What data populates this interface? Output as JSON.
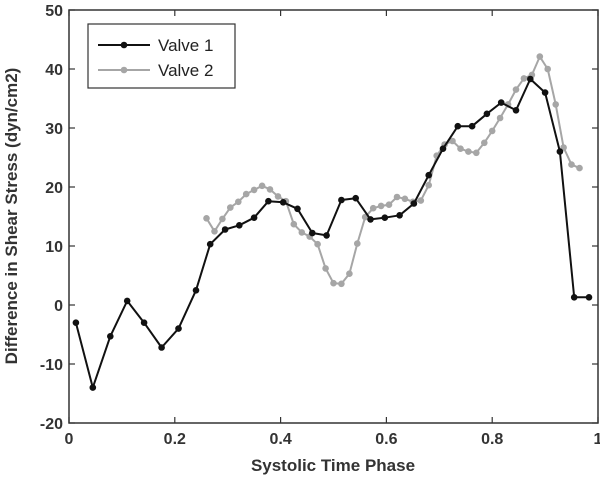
{
  "chart_data": {
    "type": "line",
    "xlabel": "Systolic Time Phase",
    "ylabel": "Difference in Shear Stress (dyn/cm2)",
    "xlim": [
      0,
      1
    ],
    "ylim": [
      -20,
      50
    ],
    "xticks": [
      "0",
      "0.2",
      "0.4",
      "0.6",
      "0.8",
      "1"
    ],
    "xtick_values": [
      0,
      0.2,
      0.4,
      0.6,
      0.8,
      1
    ],
    "yticks": [
      "-20",
      "-10",
      "0",
      "10",
      "20",
      "30",
      "40",
      "50"
    ],
    "ytick_values": [
      -20,
      -10,
      0,
      10,
      20,
      30,
      40,
      50
    ],
    "grid": false,
    "legend_position": "top-left",
    "series": [
      {
        "name": "Valve 1",
        "color": "#111111",
        "x": [
          0.013,
          0.045,
          0.078,
          0.11,
          0.142,
          0.175,
          0.207,
          0.24,
          0.267,
          0.295,
          0.322,
          0.35,
          0.377,
          0.405,
          0.432,
          0.46,
          0.487,
          0.515,
          0.542,
          0.57,
          0.597,
          0.625,
          0.652,
          0.68,
          0.707,
          0.735,
          0.762,
          0.79,
          0.817,
          0.845,
          0.872,
          0.9,
          0.928,
          0.955,
          0.983
        ],
        "y": [
          -3,
          -14,
          -5.3,
          0.7,
          -3,
          -7.2,
          -4,
          2.5,
          10.3,
          12.8,
          13.5,
          14.8,
          17.6,
          17.4,
          16.3,
          12.2,
          11.8,
          17.8,
          18.1,
          14.5,
          14.8,
          15.2,
          17.2,
          22,
          26.5,
          30.3,
          30.3,
          32.4,
          34.3,
          33,
          38.3,
          36,
          26,
          1.3,
          1.3
        ]
      },
      {
        "name": "Valve 2",
        "color": "#a6a6a6",
        "x": [
          0.26,
          0.275,
          0.29,
          0.305,
          0.32,
          0.335,
          0.35,
          0.365,
          0.38,
          0.395,
          0.41,
          0.425,
          0.44,
          0.455,
          0.47,
          0.485,
          0.5,
          0.515,
          0.53,
          0.545,
          0.56,
          0.575,
          0.59,
          0.605,
          0.62,
          0.635,
          0.65,
          0.665,
          0.68,
          0.695,
          0.71,
          0.725,
          0.74,
          0.755,
          0.77,
          0.785,
          0.8,
          0.815,
          0.83,
          0.845,
          0.86,
          0.875,
          0.89,
          0.905,
          0.92,
          0.935,
          0.95,
          0.965
        ],
        "y": [
          14.7,
          12.5,
          14.6,
          16.5,
          17.5,
          18.8,
          19.5,
          20.2,
          19.6,
          18.4,
          17.6,
          13.7,
          12.3,
          11.6,
          10.3,
          6.2,
          3.7,
          3.6,
          5.3,
          10.4,
          14.9,
          16.4,
          16.8,
          17,
          18.3,
          18,
          17.5,
          17.7,
          20.3,
          25.3,
          27.2,
          27.8,
          26.5,
          26,
          25.8,
          27.5,
          29.5,
          31.7,
          34,
          36.5,
          38.4,
          39,
          42.1,
          40,
          34,
          26.7,
          23.8,
          23.2
        ]
      }
    ]
  }
}
